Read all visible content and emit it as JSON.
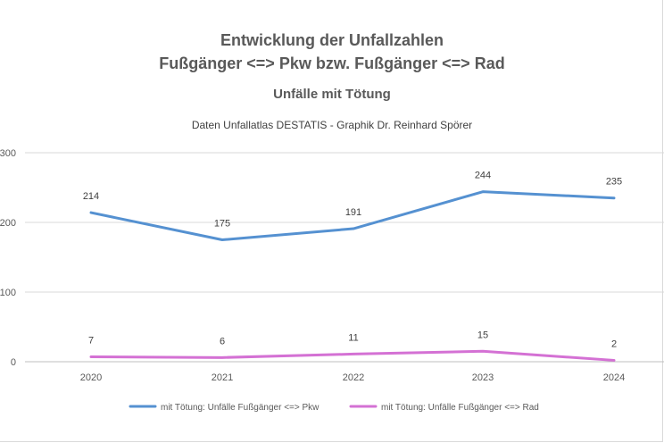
{
  "chart_data": {
    "type": "line",
    "title": "Entwicklung der Unfallzahlen",
    "subtitle_line2": "Fußgänger <=> Pkw bzw. Fußgänger <=> Rad",
    "subtitle": "Unfälle mit Tötung",
    "source": "Daten Unfallatlas DESTATIS  - Graphik  Dr. Reinhard Spörer",
    "categories": [
      "2020",
      "2021",
      "2022",
      "2023",
      "2024"
    ],
    "series": [
      {
        "name": "mit Tötung: Unfälle Fußgänger <=> Pkw",
        "color": "#5591d1",
        "values": [
          214,
          175,
          191,
          244,
          235
        ]
      },
      {
        "name": "mit Tötung: Unfälle Fußgänger <=> Rad",
        "color": "#d471d4",
        "values": [
          7,
          6,
          11,
          15,
          2
        ]
      }
    ],
    "yticks": [
      "0",
      "100",
      "200",
      "300"
    ],
    "ylim": [
      0,
      300
    ],
    "grid": true,
    "legend": "bottom"
  }
}
